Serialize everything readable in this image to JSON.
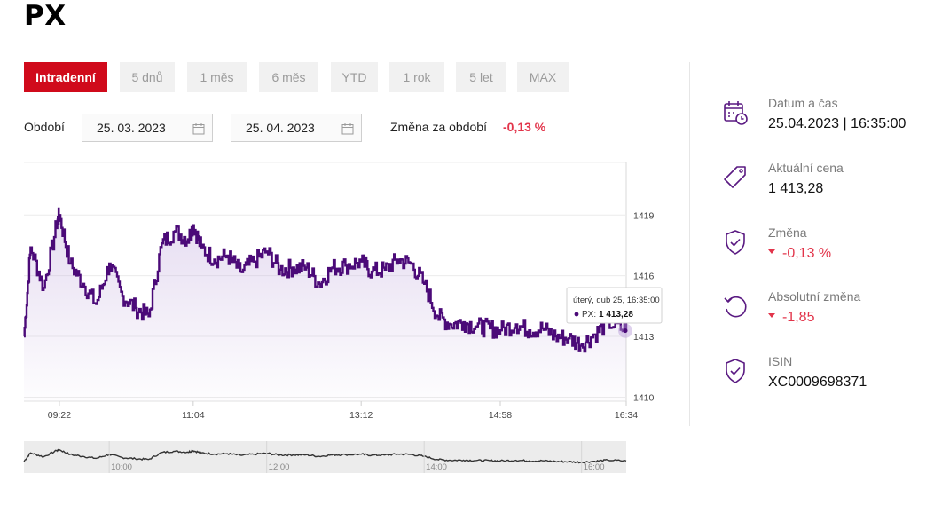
{
  "page": {
    "title": "PX"
  },
  "tabs": [
    {
      "label": "Intradenní",
      "active": true
    },
    {
      "label": "5 dnů",
      "active": false
    },
    {
      "label": "1 měs",
      "active": false
    },
    {
      "label": "6 měs",
      "active": false
    },
    {
      "label": "YTD",
      "active": false
    },
    {
      "label": "1 rok",
      "active": false
    },
    {
      "label": "5 let",
      "active": false
    },
    {
      "label": "MAX",
      "active": false
    }
  ],
  "period": {
    "label": "Období",
    "from": "25. 03. 2023",
    "to": "25. 04. 2023",
    "change_label": "Změna za období",
    "change_value": "-0,13 %"
  },
  "tooltip": {
    "date": "úterý, dub 25, 16:35:00",
    "series": "PX:",
    "value": "1 413,28"
  },
  "info": {
    "datetime": {
      "label": "Datum a čas",
      "value": "25.04.2023 | 16:35:00",
      "icon": "calendar-clock-icon"
    },
    "price": {
      "label": "Aktuální cena",
      "value": "1 413,28",
      "icon": "price-tag-icon"
    },
    "change": {
      "label": "Změna",
      "value": "-0,13 %",
      "icon": "shield-check-icon"
    },
    "abs_change": {
      "label": "Absolutní změna",
      "value": "-1,85",
      "icon": "refresh-icon"
    },
    "isin": {
      "label": "ISIN",
      "value": "XC0009698371",
      "icon": "shield-check-icon"
    }
  },
  "colors": {
    "accent": "#d00a1b",
    "line": "#4b0a78",
    "negative": "#e2344a",
    "navigator": "#333333"
  },
  "chart_data": {
    "type": "area",
    "series": [
      {
        "name": "PX",
        "x": [
          "08:55",
          "09:00",
          "09:10",
          "09:20",
          "09:22",
          "09:30",
          "09:40",
          "09:50",
          "10:00",
          "10:10",
          "10:20",
          "10:30",
          "10:40",
          "10:50",
          "11:00",
          "11:04",
          "11:10",
          "11:20",
          "11:30",
          "11:40",
          "11:50",
          "12:00",
          "12:10",
          "12:20",
          "12:30",
          "12:40",
          "12:50",
          "13:00",
          "13:12",
          "13:20",
          "13:30",
          "13:40",
          "13:50",
          "14:00",
          "14:10",
          "14:20",
          "14:30",
          "14:40",
          "14:50",
          "14:58",
          "15:10",
          "15:20",
          "15:30",
          "15:40",
          "15:50",
          "16:00",
          "16:10",
          "16:20",
          "16:34"
        ],
        "values": [
          1413.0,
          1417.4,
          1415.4,
          1418.6,
          1419.0,
          1416.6,
          1415.6,
          1414.6,
          1416.6,
          1415.0,
          1414.4,
          1414.0,
          1417.6,
          1418.2,
          1417.8,
          1418.5,
          1417.4,
          1416.8,
          1417.0,
          1416.2,
          1416.7,
          1417.2,
          1416.3,
          1416.4,
          1416.4,
          1415.6,
          1416.4,
          1416.5,
          1416.7,
          1416.2,
          1416.3,
          1416.8,
          1416.6,
          1415.6,
          1414.0,
          1413.6,
          1413.7,
          1413.5,
          1413.4,
          1413.3,
          1413.6,
          1413.3,
          1413.4,
          1413.0,
          1412.9,
          1412.6,
          1413.1,
          1413.7,
          1413.28
        ]
      }
    ],
    "x_ticks": [
      "09:22",
      "11:04",
      "13:12",
      "14:58",
      "16:34"
    ],
    "y_ticks": [
      1410,
      1413,
      1416,
      1419
    ],
    "ylim": [
      1409.8,
      1421.6
    ],
    "navigator_ticks": [
      "10:00",
      "12:00",
      "14:00",
      "16:00"
    ],
    "grid": true
  }
}
